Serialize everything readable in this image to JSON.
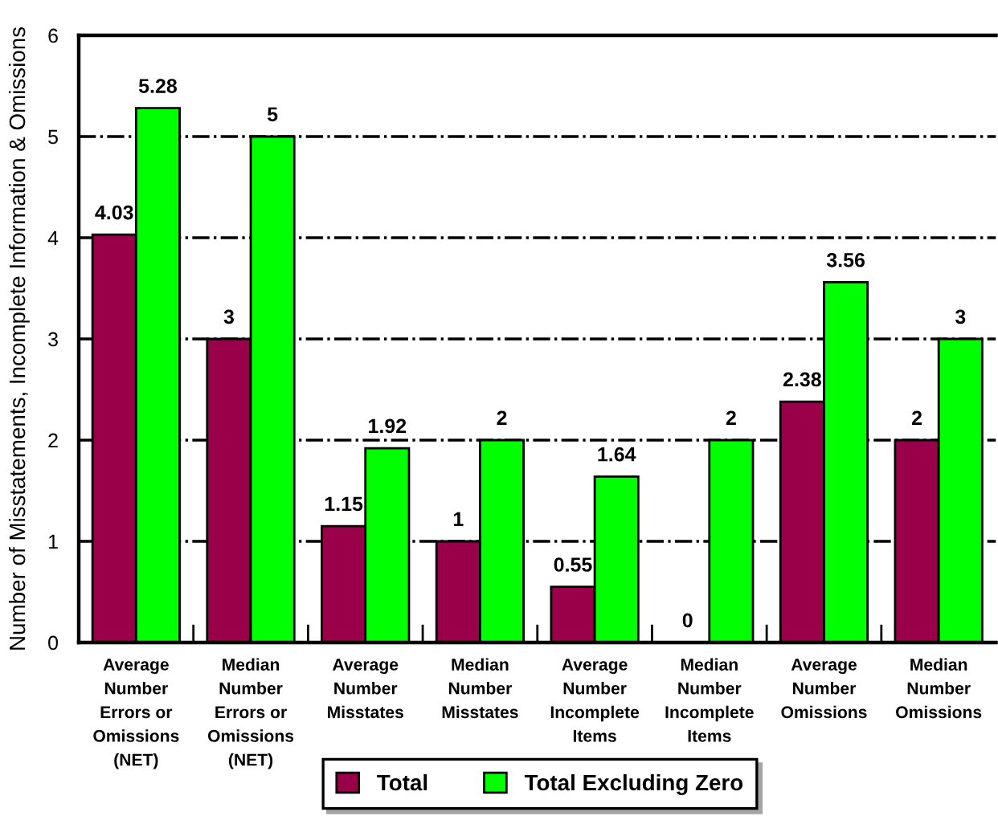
{
  "chart_data": {
    "type": "bar",
    "ylabel": "Number of Misstatements, Incomplete Information & Omissions",
    "categories": [
      "Average\nNumber\nErrors or\nOmissions\n(NET)",
      "Median\nNumber\nErrors or\nOmissions\n(NET)",
      "Average\nNumber\nMisstates",
      "Median\nNumber\nMisstates",
      "Average\nNumber\nIncomplete\nItems",
      "Median\nNumber\nIncomplete\nItems",
      "Average\nNumber\nOmissions",
      "Median\nNumber\nOmissions"
    ],
    "series": [
      {
        "name": "Total",
        "color": "#990049",
        "values": [
          4.03,
          3,
          1.15,
          1,
          0.55,
          0,
          2.38,
          2
        ]
      },
      {
        "name": "Total Excluding Zero",
        "color": "#00ff00",
        "values": [
          5.28,
          5,
          1.92,
          2,
          1.64,
          2,
          3.56,
          3
        ]
      }
    ],
    "ylim": [
      0,
      6
    ],
    "yticks": [
      0,
      1,
      2,
      3,
      4,
      5,
      6
    ],
    "grid": "y",
    "legend": "bottom",
    "data_labels": true
  }
}
